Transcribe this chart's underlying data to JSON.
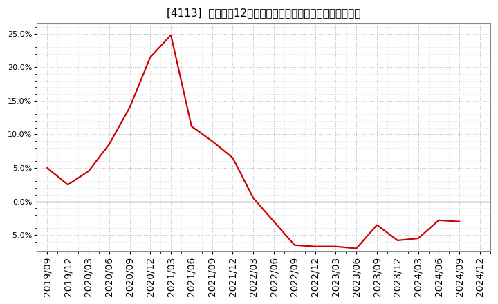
{
  "title": "[4113]  売上高の12か月移動合計の対前年同期増減率の推移",
  "x_labels": [
    "2019/09",
    "2019/12",
    "2020/03",
    "2020/06",
    "2020/09",
    "2020/12",
    "2021/03",
    "2021/06",
    "2021/09",
    "2021/12",
    "2022/03",
    "2022/06",
    "2022/09",
    "2022/12",
    "2023/03",
    "2023/06",
    "2023/09",
    "2023/12",
    "2024/03",
    "2024/06",
    "2024/09",
    "2024/12"
  ],
  "y_values": [
    5.0,
    2.5,
    4.5,
    8.5,
    14.0,
    21.5,
    24.8,
    11.2,
    9.0,
    6.5,
    0.5,
    -3.0,
    -6.5,
    -6.7,
    -6.7,
    -7.0,
    -3.5,
    -5.8,
    -5.5,
    -2.8,
    -3.0,
    null
  ],
  "line_color": "#cc0000",
  "background_color": "#ffffff",
  "plot_background": "#ffffff",
  "grid_color": "#aaaaaa",
  "ylim": [
    -7.5,
    26.5
  ],
  "yticks": [
    -5.0,
    0.0,
    5.0,
    10.0,
    15.0,
    20.0,
    25.0
  ],
  "zero_line_color": "#666666",
  "title_fontsize": 11,
  "tick_fontsize": 8
}
